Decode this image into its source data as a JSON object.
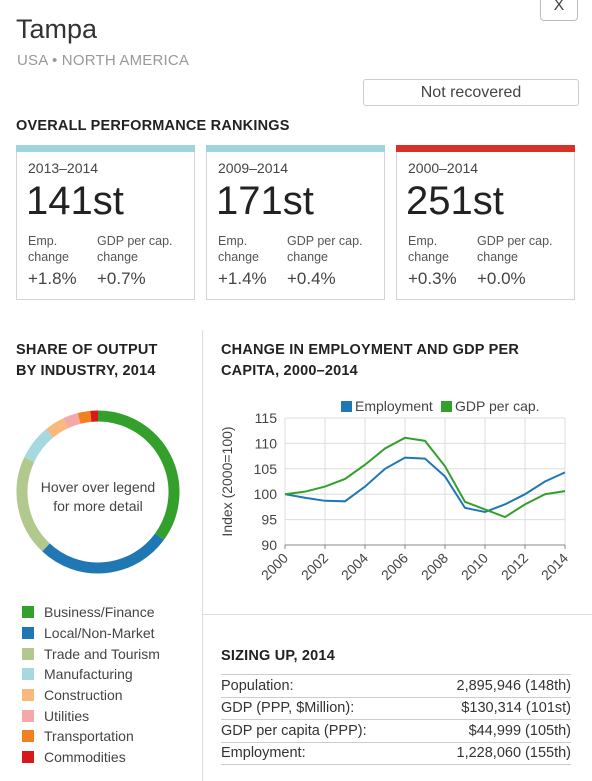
{
  "header": {
    "close_label": "X",
    "city": "Tampa",
    "region": "USA • NORTH AMERICA",
    "status": "Not recovered"
  },
  "rankings": {
    "title": "OVERALL PERFORMANCE RANKINGS",
    "emp_label_1": "Emp.",
    "emp_label_2": "change",
    "gdp_label_1": "GDP per cap.",
    "gdp_label_2": "change",
    "cards": [
      {
        "period": "2013–2014",
        "rank": "141st",
        "emp": "+1.8%",
        "gdp": "+0.7%",
        "color": "#9fd3de"
      },
      {
        "period": "2009–2014",
        "rank": "171st",
        "emp": "+1.4%",
        "gdp": "+0.4%",
        "color": "#9fd3de"
      },
      {
        "period": "2000–2014",
        "rank": "251st",
        "emp": "+0.3%",
        "gdp": "+0.0%",
        "color": "#d93127"
      }
    ]
  },
  "share": {
    "title_1": "SHARE OF OUTPUT",
    "title_2": "BY INDUSTRY, 2014",
    "center_1": "Hover over legend",
    "center_2": "for more detail"
  },
  "change_chart": {
    "title_1": "CHANGE IN EMPLOYMENT AND GDP PER",
    "title_2": "CAPITA, 2000–2014"
  },
  "sizing": {
    "title": "SIZING UP, 2014",
    "rows": [
      {
        "label": "Population:",
        "value": "2,895,946 (148th)"
      },
      {
        "label": "GDP (PPP, $Million):",
        "value": "$130,314 (101st)"
      },
      {
        "label": "GDP per capita (PPP):",
        "value": "$44,999 (105th)"
      },
      {
        "label": "Employment:",
        "value": "1,228,060 (155th)"
      }
    ]
  },
  "chart_data": [
    {
      "type": "pie",
      "title": "SHARE OF OUTPUT BY INDUSTRY, 2014",
      "categories": [
        "Business/Finance",
        "Local/Non-Market",
        "Trade and Tourism",
        "Manufacturing",
        "Construction",
        "Utilities",
        "Transportation",
        "Commodities"
      ],
      "values": [
        35,
        27,
        20,
        7,
        4,
        3,
        2.5,
        1.5
      ],
      "colors": [
        "#33a02c",
        "#1f78b4",
        "#b2c98d",
        "#a6d8df",
        "#f9b97c",
        "#f4a8a8",
        "#f08020",
        "#d7191c"
      ],
      "legend_position": "bottom"
    },
    {
      "type": "line",
      "title": "CHANGE IN EMPLOYMENT AND GDP PER CAPITA, 2000–2014",
      "xlabel": "",
      "ylabel": "Index (2000=100)",
      "x": [
        2000,
        2001,
        2002,
        2003,
        2004,
        2005,
        2006,
        2007,
        2008,
        2009,
        2010,
        2011,
        2012,
        2013,
        2014
      ],
      "series": [
        {
          "name": "Employment",
          "color": "#1f78b4",
          "values": [
            100,
            99.3,
            98.7,
            98.6,
            101.5,
            105,
            107.2,
            107,
            103.5,
            97.3,
            96.5,
            98,
            100,
            102.5,
            104.3
          ]
        },
        {
          "name": "GDP per cap.",
          "color": "#33a02c",
          "values": [
            100,
            100.5,
            101.5,
            103,
            105.8,
            109,
            111.1,
            110.5,
            105.5,
            98.5,
            97,
            95.5,
            98,
            100,
            100.6
          ]
        }
      ],
      "xticks": [
        2000,
        2002,
        2004,
        2006,
        2008,
        2010,
        2012,
        2014
      ],
      "yticks": [
        90,
        95,
        100,
        105,
        110,
        115
      ],
      "xlim": [
        2000,
        2014
      ],
      "ylim": [
        90,
        115
      ],
      "grid": true,
      "legend_position": "top-right"
    }
  ]
}
